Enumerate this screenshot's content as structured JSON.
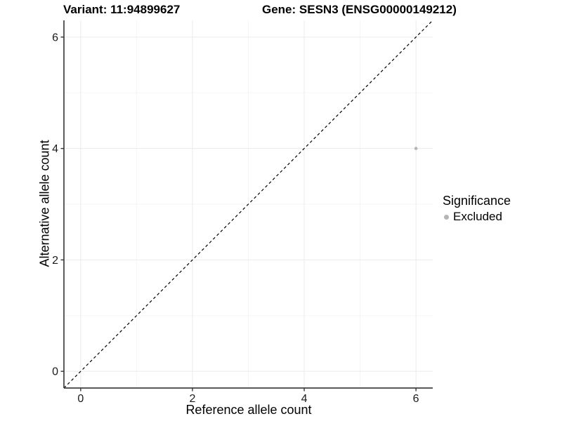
{
  "chart_data": {
    "type": "scatter",
    "title_left": "Variant: 11:94899627",
    "title_right": "Gene: SESN3 (ENSG00000149212)",
    "xlabel": "Reference allele count",
    "ylabel": "Alternative allele count",
    "xlim": [
      -0.3,
      6.3
    ],
    "ylim": [
      -0.3,
      6.3
    ],
    "x_ticks": [
      0,
      2,
      4,
      6
    ],
    "y_ticks": [
      0,
      2,
      4,
      6
    ],
    "x_minor_ticks": [
      1,
      3,
      5
    ],
    "y_minor_ticks": [
      1,
      3,
      5
    ],
    "grid": true,
    "reference_line": {
      "kind": "identity",
      "style": "dashed",
      "color": "#000000"
    },
    "series": [
      {
        "name": "Excluded",
        "color": "#b5b5b5",
        "points": [
          {
            "x": 6,
            "y": 4
          }
        ]
      }
    ],
    "legend": {
      "title": "Significance",
      "position": "right",
      "items": [
        {
          "label": "Excluded",
          "color": "#b5b5b5"
        }
      ]
    }
  },
  "colors": {
    "background": "#ffffff",
    "grid_major": "#ebebeb",
    "grid_minor": "#f5f5f5",
    "axis_line": "#404040",
    "tick_mark": "#333333",
    "tick_label": "#1a1a1a",
    "dashed_line": "#000000",
    "point": "#b5b5b5",
    "text": "#000000"
  }
}
